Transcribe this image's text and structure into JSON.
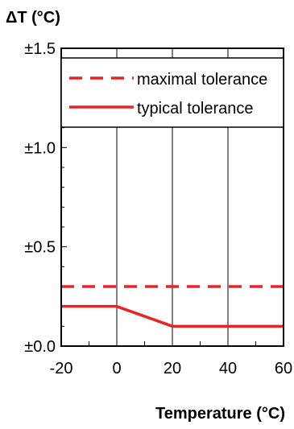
{
  "chart_data": {
    "type": "line",
    "ylabel": "ΔT (°C)",
    "xlabel": "Temperature (°C)",
    "xlim": [
      -20,
      60
    ],
    "ylim": [
      0,
      1.5
    ],
    "x_ticks": [
      -20,
      0,
      20,
      40,
      60
    ],
    "x_tick_labels": [
      "-20",
      "0",
      "20",
      "40",
      "60"
    ],
    "y_ticks": [
      0,
      0.5,
      1.0,
      1.5
    ],
    "y_tick_labels": [
      "±0.0",
      "±0.5",
      "±1.0",
      "±1.5"
    ],
    "grid": "vertical",
    "legend_position": "top",
    "series": [
      {
        "name": "maximal tolerance",
        "style": "dashed",
        "color": "#e8232a",
        "x": [
          -20,
          60
        ],
        "y": [
          0.3,
          0.3
        ]
      },
      {
        "name": "typical tolerance",
        "style": "solid",
        "color": "#e8232a",
        "x": [
          -20,
          0,
          20,
          60
        ],
        "y": [
          0.2,
          0.2,
          0.1,
          0.1
        ]
      }
    ]
  }
}
